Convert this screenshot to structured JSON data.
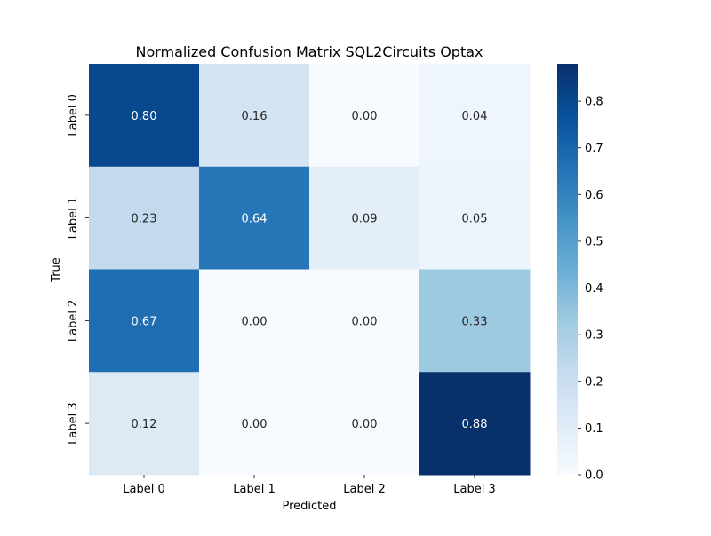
{
  "chart_data": {
    "type": "heatmap",
    "title": "Normalized Confusion Matrix SQL2Circuits Optax",
    "xlabel": "Predicted",
    "ylabel": "True",
    "x_categories": [
      "Label 0",
      "Label 1",
      "Label 2",
      "Label 3"
    ],
    "y_categories": [
      "Label 0",
      "Label 1",
      "Label 2",
      "Label 3"
    ],
    "values": [
      [
        0.8,
        0.16,
        0.0,
        0.04
      ],
      [
        0.23,
        0.64,
        0.09,
        0.05
      ],
      [
        0.67,
        0.0,
        0.0,
        0.33
      ],
      [
        0.12,
        0.0,
        0.0,
        0.88
      ]
    ],
    "value_format_decimals": 2,
    "colormap": "Blues",
    "colorbar": {
      "range": [
        0.0,
        0.88
      ],
      "ticks": [
        0.0,
        0.1,
        0.2,
        0.3,
        0.4,
        0.5,
        0.6,
        0.7,
        0.8
      ],
      "tick_labels": [
        "0.0",
        "0.1",
        "0.2",
        "0.3",
        "0.4",
        "0.5",
        "0.6",
        "0.7",
        "0.8"
      ]
    },
    "grid": false,
    "legend": "colorbar-right"
  }
}
